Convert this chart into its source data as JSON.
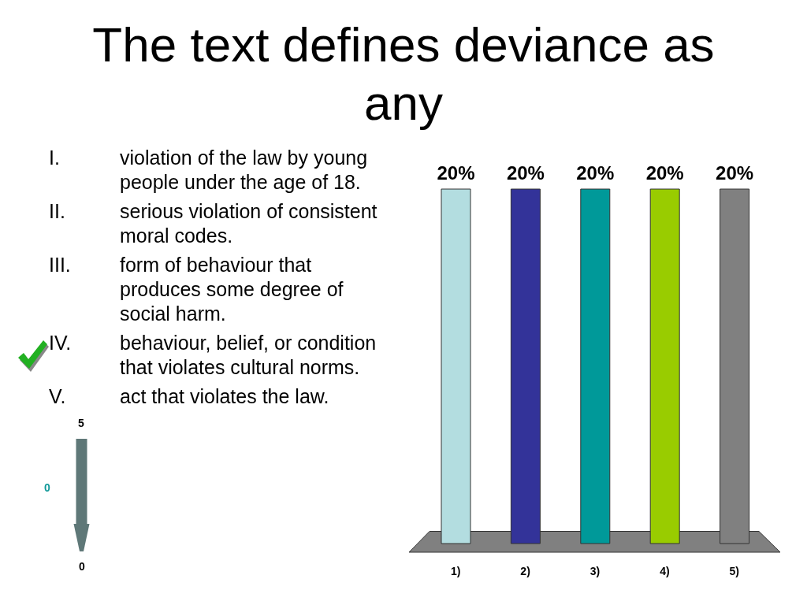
{
  "chart_data": {
    "type": "bar",
    "title": "The text defines deviance as any",
    "categories": [
      "1)",
      "2)",
      "3)",
      "4)",
      "5)"
    ],
    "values": [
      20,
      20,
      20,
      20,
      20
    ],
    "colors": [
      "#b3dde0",
      "#333399",
      "#009999",
      "#99cc00",
      "#808080"
    ],
    "value_labels": [
      "20%",
      "20%",
      "20%",
      "20%",
      "20%"
    ],
    "annotations": [
      "I.",
      "violation of the law by young people under the age of 18.",
      "II.",
      "serious violation of consistent moral codes.",
      "III.",
      "form of behaviour that produces some degree of social harm.",
      "IV.",
      "behaviour, belief, or condition that violates cultural norms.",
      "V.",
      "act that violates the law.",
      "5",
      "0",
      "0"
    ]
  }
}
